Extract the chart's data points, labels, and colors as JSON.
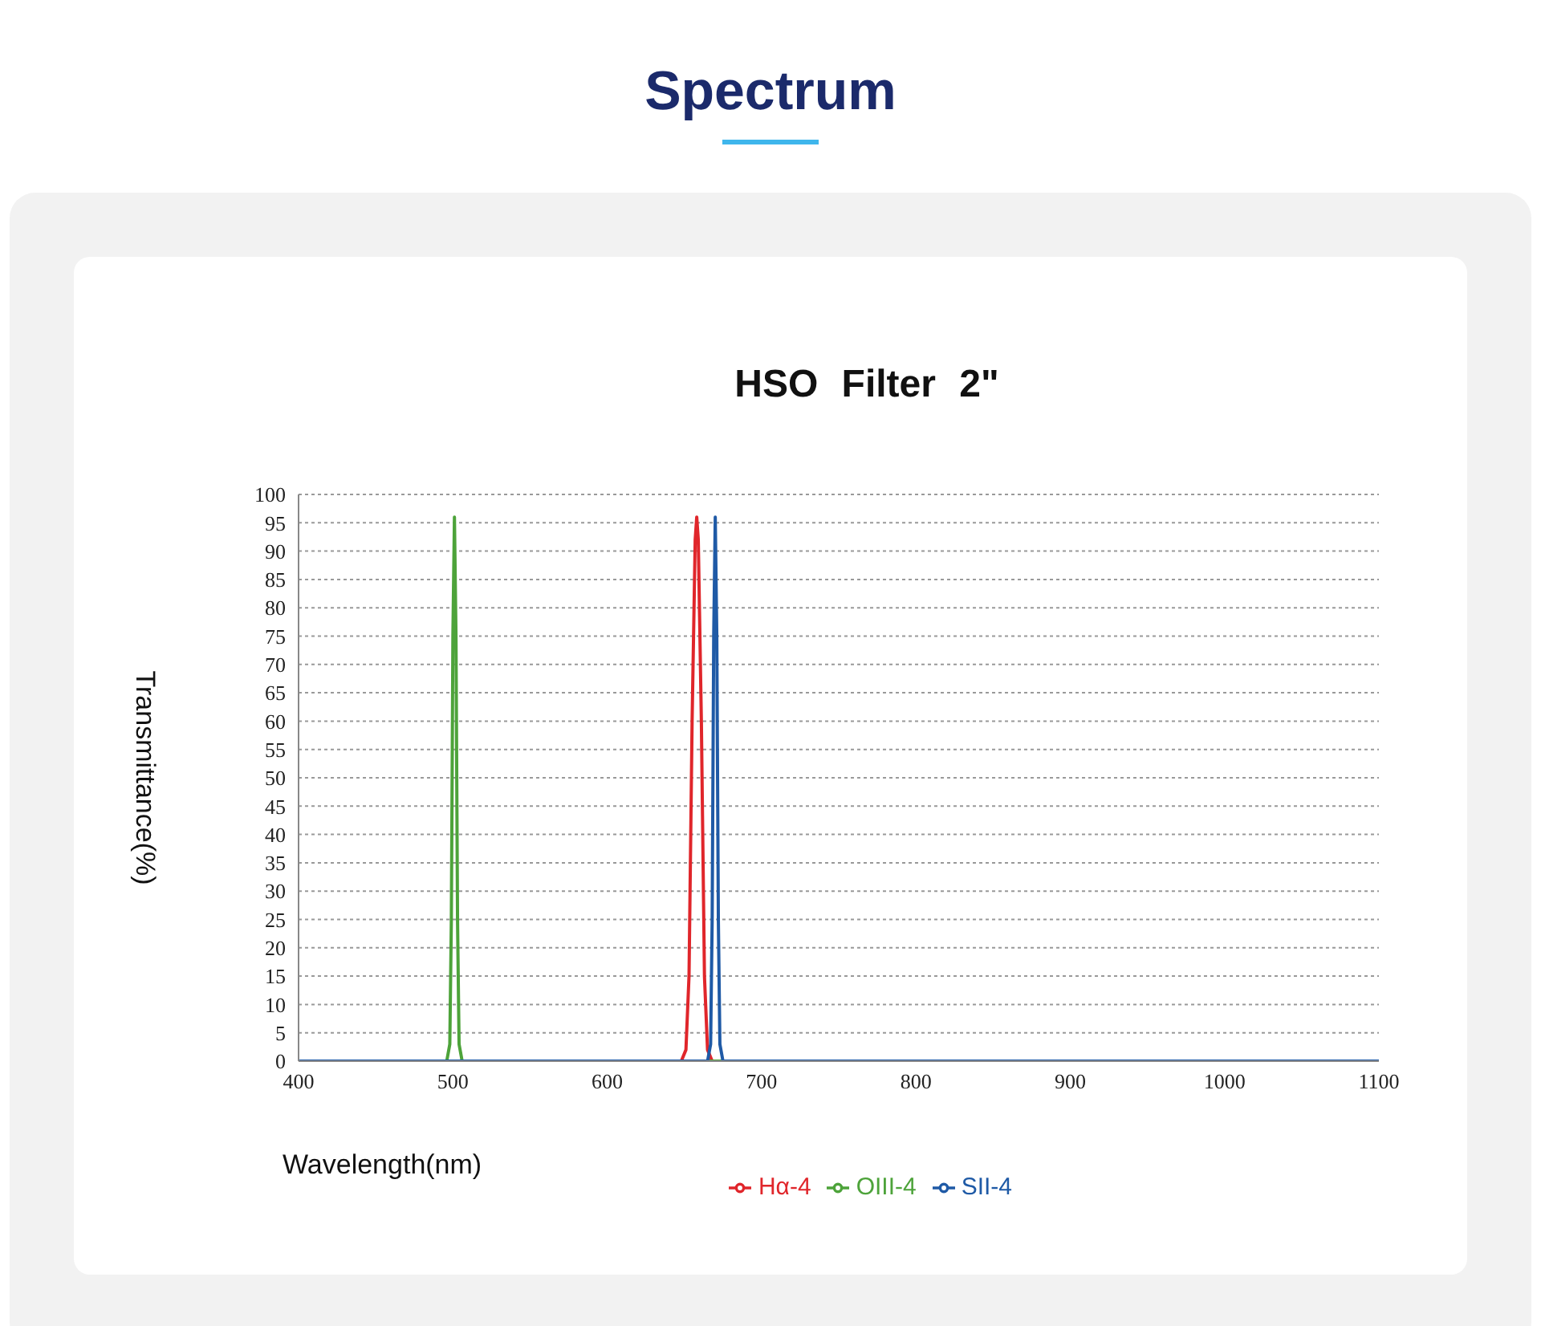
{
  "chart_data": {
    "type": "line",
    "title": "Spectrum",
    "subtitle": "HSO Filter 2\"",
    "xlabel": "Wavelength(nm)",
    "ylabel": "Transmittance(%)",
    "xlim": [
      400,
      1100
    ],
    "xticks": [
      400,
      500,
      600,
      700,
      800,
      900,
      1000,
      1100
    ],
    "ylim": [
      0,
      100
    ],
    "yticks": [
      0,
      5,
      10,
      15,
      20,
      25,
      30,
      35,
      40,
      45,
      50,
      55,
      60,
      65,
      70,
      75,
      80,
      85,
      90,
      95,
      100
    ],
    "grid": "y",
    "legend": "bottom",
    "marker": "none",
    "line_style": "solid",
    "series": [
      {
        "name": "Hα-4",
        "color": "#e0262b",
        "x": [
          400,
          648,
          651,
          653,
          655,
          657,
          658,
          659,
          661,
          663,
          665,
          668,
          1100
        ],
        "values": [
          0,
          0,
          2,
          15,
          60,
          92,
          96,
          92,
          60,
          15,
          2,
          0,
          0
        ]
      },
      {
        "name": "OIII-4",
        "color": "#4da33a",
        "x": [
          400,
          496,
          498,
          499,
          500,
          501,
          502,
          503,
          504,
          506,
          1100
        ],
        "values": [
          0,
          0,
          3,
          25,
          75,
          96,
          75,
          25,
          3,
          0,
          0
        ]
      },
      {
        "name": "SII-4",
        "color": "#1f5aa6",
        "x": [
          400,
          665,
          667,
          668,
          669,
          670,
          671,
          672,
          673,
          675,
          1100
        ],
        "values": [
          0,
          0,
          3,
          25,
          75,
          96,
          75,
          25,
          3,
          0,
          0
        ]
      }
    ]
  }
}
